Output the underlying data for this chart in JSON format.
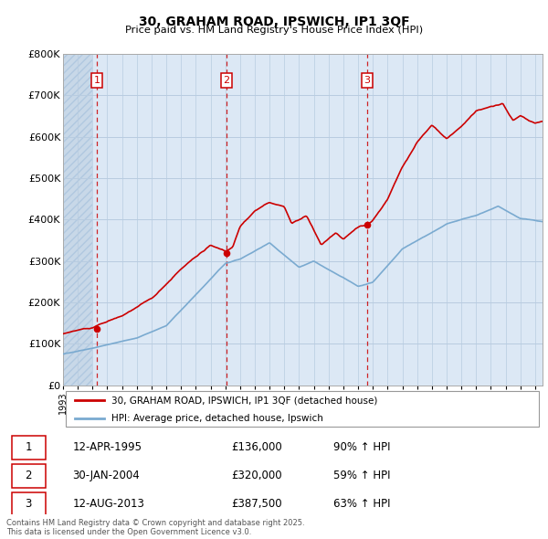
{
  "title": "30, GRAHAM ROAD, IPSWICH, IP1 3QF",
  "subtitle": "Price paid vs. HM Land Registry's House Price Index (HPI)",
  "ylim": [
    0,
    800000
  ],
  "yticks": [
    0,
    100000,
    200000,
    300000,
    400000,
    500000,
    600000,
    700000,
    800000
  ],
  "ytick_labels": [
    "£0",
    "£100K",
    "£200K",
    "£300K",
    "£400K",
    "£500K",
    "£600K",
    "£700K",
    "£800K"
  ],
  "sale_color": "#cc0000",
  "hpi_color": "#7aaad0",
  "background_color": "#dce8f5",
  "hatch_color": "#c8d8e8",
  "grid_color": "#b8cce0",
  "sale_dates": [
    1995.28,
    2004.08,
    2013.62
  ],
  "sale_prices": [
    136000,
    320000,
    387500
  ],
  "sale_labels": [
    "1",
    "2",
    "3"
  ],
  "vline_color": "#cc0000",
  "legend_label_sale": "30, GRAHAM ROAD, IPSWICH, IP1 3QF (detached house)",
  "legend_label_hpi": "HPI: Average price, detached house, Ipswich",
  "table_entries": [
    {
      "num": "1",
      "date": "12-APR-1995",
      "price": "£136,000",
      "hpi": "90% ↑ HPI"
    },
    {
      "num": "2",
      "date": "30-JAN-2004",
      "price": "£320,000",
      "hpi": "59% ↑ HPI"
    },
    {
      "num": "3",
      "date": "12-AUG-2013",
      "price": "£387,500",
      "hpi": "63% ↑ HPI"
    }
  ],
  "footnote": "Contains HM Land Registry data © Crown copyright and database right 2025.\nThis data is licensed under the Open Government Licence v3.0.",
  "xmin": 1993.0,
  "xmax": 2025.5
}
